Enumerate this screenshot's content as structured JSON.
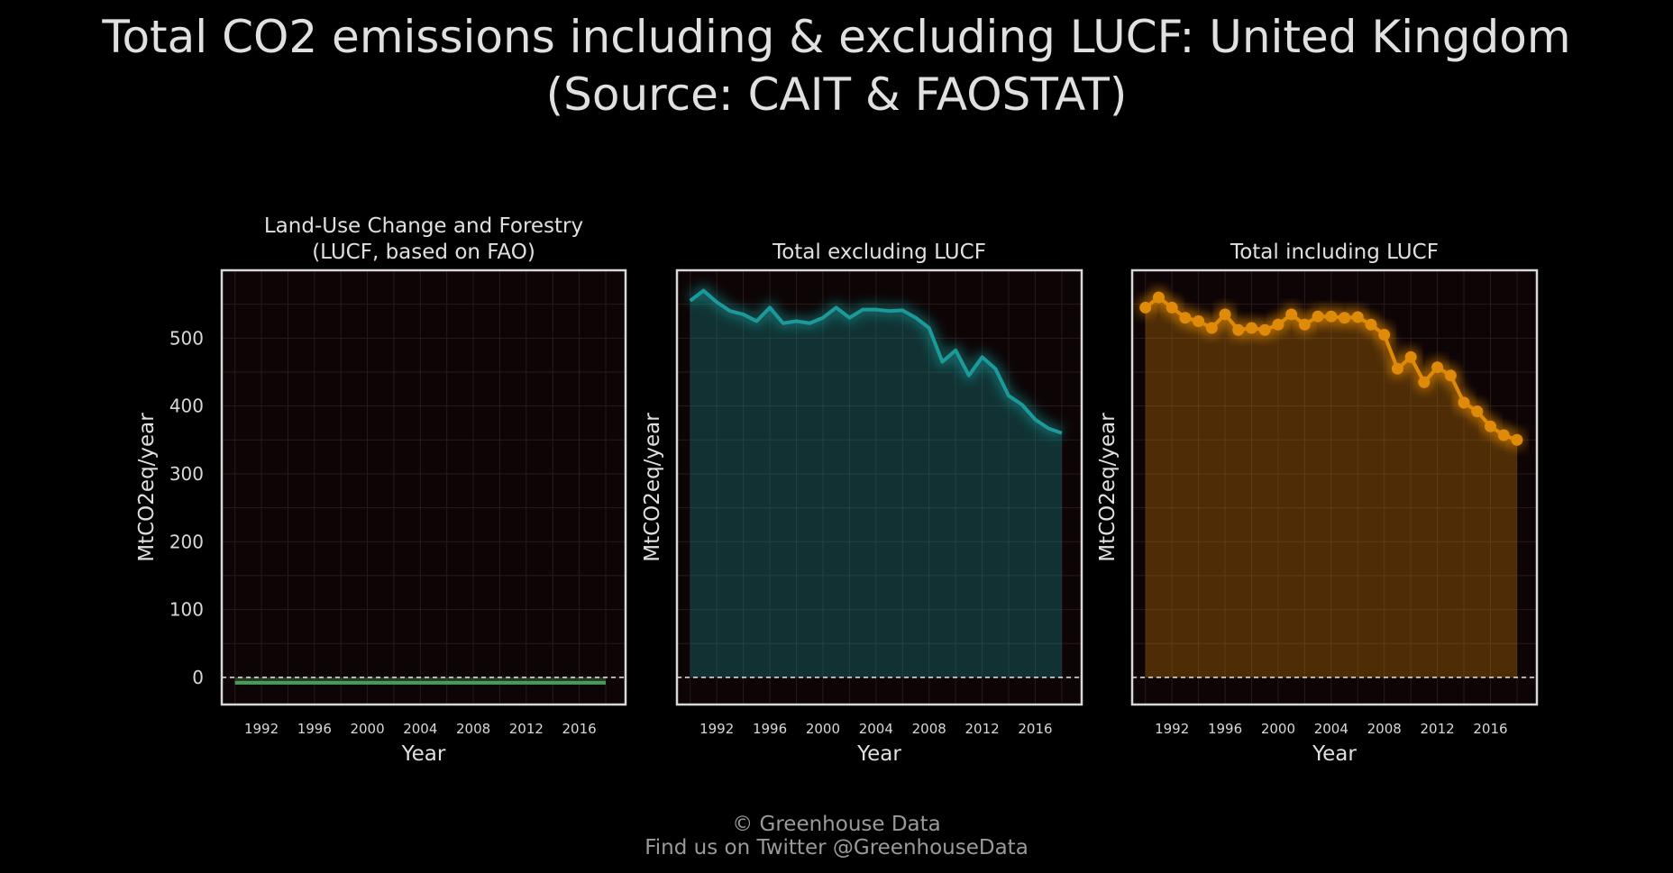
{
  "title_line1": "Total CO2 emissions including & excluding LUCF: United Kingdom",
  "title_line2": "(Source: CAIT & FAOSTAT)",
  "caption_line1": "© Greenhouse Data",
  "caption_line2": "Find us on Twitter @GreenhouseData",
  "colors": {
    "lucf": "#4a9a5a",
    "excl": "#1a9a9a",
    "incl": "#e08a0a",
    "panel_bg": "#0d0405",
    "frame": "#d8d8d8"
  },
  "chart_data": [
    {
      "type": "area",
      "title": "Land-Use Change and Forestry\n(LUCF, based on FAO)",
      "xlabel": "Year",
      "ylabel": "MtCO2eq/year",
      "xlim": [
        1989,
        2019.5
      ],
      "ylim": [
        -40,
        600
      ],
      "xticks": [
        1992,
        1996,
        2000,
        2004,
        2008,
        2012,
        2016
      ],
      "yticks": [
        0,
        100,
        200,
        300,
        400,
        500
      ],
      "grid": true,
      "reference_line": 0,
      "series": [
        {
          "x": [
            1990,
            1991,
            1992,
            1993,
            1994,
            1995,
            1996,
            1997,
            1998,
            1999,
            2000,
            2001,
            2002,
            2003,
            2004,
            2005,
            2006,
            2007,
            2008,
            2009,
            2010,
            2011,
            2012,
            2013,
            2014,
            2015,
            2016,
            2017,
            2018
          ],
          "values": [
            -8,
            -8,
            -8,
            -8,
            -8,
            -8,
            -8,
            -8,
            -8,
            -8,
            -8,
            -8,
            -8,
            -8,
            -8,
            -8,
            -8,
            -8,
            -8,
            -8,
            -8,
            -8,
            -8,
            -8,
            -8,
            -8,
            -8,
            -8,
            -8
          ]
        }
      ]
    },
    {
      "type": "area",
      "title": "Total excluding LUCF",
      "xlabel": "Year",
      "ylabel": "MtCO2eq/year",
      "xlim": [
        1989,
        2019.5
      ],
      "ylim": [
        -40,
        600
      ],
      "xticks": [
        1992,
        1996,
        2000,
        2004,
        2008,
        2012,
        2016
      ],
      "grid": true,
      "reference_line": 0,
      "series": [
        {
          "x": [
            1990,
            1991,
            1992,
            1993,
            1994,
            1995,
            1996,
            1997,
            1998,
            1999,
            2000,
            2001,
            2002,
            2003,
            2004,
            2005,
            2006,
            2007,
            2008,
            2009,
            2010,
            2011,
            2012,
            2013,
            2014,
            2015,
            2016,
            2017,
            2018
          ],
          "values": [
            555,
            570,
            553,
            540,
            535,
            525,
            545,
            522,
            525,
            522,
            530,
            545,
            530,
            542,
            542,
            540,
            541,
            530,
            515,
            465,
            482,
            445,
            472,
            455,
            415,
            402,
            380,
            367,
            360
          ]
        }
      ]
    },
    {
      "type": "area",
      "title": "Total including LUCF",
      "xlabel": "Year",
      "ylabel": "MtCO2eq/year",
      "xlim": [
        1989,
        2019.5
      ],
      "ylim": [
        -40,
        600
      ],
      "xticks": [
        1992,
        1996,
        2000,
        2004,
        2008,
        2012,
        2016
      ],
      "grid": true,
      "reference_line": 0,
      "series": [
        {
          "x": [
            1990,
            1991,
            1992,
            1993,
            1994,
            1995,
            1996,
            1997,
            1998,
            1999,
            2000,
            2001,
            2002,
            2003,
            2004,
            2005,
            2006,
            2007,
            2008,
            2009,
            2010,
            2011,
            2012,
            2013,
            2014,
            2015,
            2016,
            2017,
            2018
          ],
          "values": [
            545,
            560,
            545,
            530,
            525,
            515,
            535,
            512,
            515,
            512,
            520,
            535,
            520,
            532,
            532,
            530,
            531,
            520,
            505,
            455,
            472,
            435,
            457,
            445,
            405,
            392,
            370,
            357,
            350
          ]
        }
      ]
    }
  ]
}
